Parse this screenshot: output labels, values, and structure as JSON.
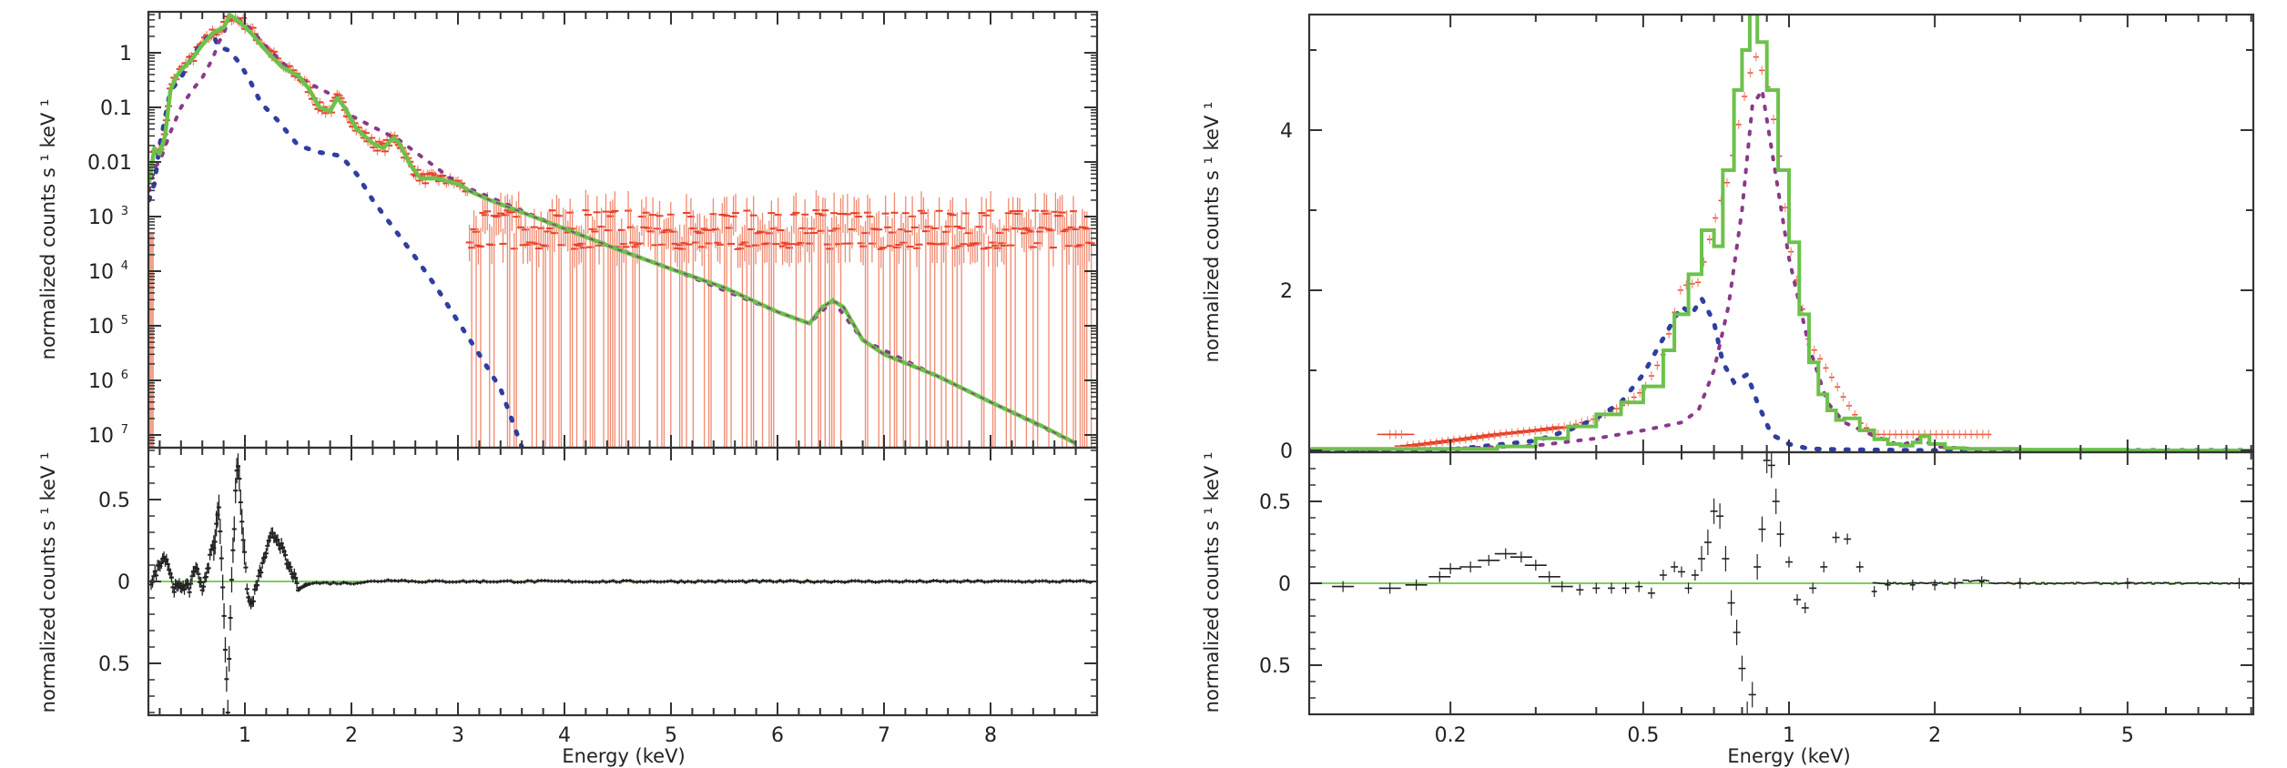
{
  "figure": {
    "panels": [
      {
        "id": "left",
        "upper": {
          "ylabel": "normalized counts s ¹ keV ¹",
          "yscale": "log",
          "ylim": [
            5.9e-08,
            5.6
          ],
          "yticks": [
            {
              "value": 1,
              "label": "1"
            },
            {
              "value": 0.1,
              "label": "0.1"
            },
            {
              "value": 0.01,
              "label": "0.01"
            },
            {
              "value": 0.001,
              "label": "10",
              "sup": "3"
            },
            {
              "value": 0.0001,
              "label": "10",
              "sup": "4"
            },
            {
              "value": 1e-05,
              "label": "10",
              "sup": "5"
            },
            {
              "value": 1e-06,
              "label": "10",
              "sup": "6"
            },
            {
              "value": 1e-07,
              "label": "10",
              "sup": "7"
            }
          ]
        },
        "lower": {
          "ylabel": "normalized counts s ¹ keV ¹",
          "ylim": [
            -0.82,
            0.8
          ],
          "yticks": [
            {
              "value": 0.5,
              "label": "0.5"
            },
            {
              "value": 0,
              "label": "0"
            },
            {
              "value": -0.5,
              "label": "0.5"
            }
          ]
        },
        "xscale": "linear",
        "xlim": [
          0.1,
          9.0
        ],
        "xticks": [
          {
            "value": 1,
            "label": "1"
          },
          {
            "value": 2,
            "label": "2"
          },
          {
            "value": 3,
            "label": "3"
          },
          {
            "value": 4,
            "label": "4"
          },
          {
            "value": 5,
            "label": "5"
          },
          {
            "value": 6,
            "label": "6"
          },
          {
            "value": 7,
            "label": "7"
          },
          {
            "value": 8,
            "label": "8"
          }
        ],
        "xlabel": "Energy (keV)"
      },
      {
        "id": "right",
        "upper": {
          "ylabel": "normalized counts s ¹ keV ¹",
          "yscale": "linear",
          "ylim": [
            0,
            5.45
          ],
          "yticks": [
            {
              "value": 0,
              "label": "0"
            },
            {
              "value": 2,
              "label": "2"
            },
            {
              "value": 4,
              "label": "4"
            }
          ]
        },
        "lower": {
          "ylabel": "normalized counts s ¹ keV ¹",
          "ylim": [
            -0.8,
            0.8
          ],
          "yticks": [
            {
              "value": 0.5,
              "label": "0.5"
            },
            {
              "value": 0,
              "label": "0"
            },
            {
              "value": -0.5,
              "label": "0.5"
            }
          ]
        },
        "xscale": "log",
        "xlim": [
          0.103,
          9.05
        ],
        "xticks": [
          {
            "value": 0.2,
            "label": "0.2"
          },
          {
            "value": 0.5,
            "label": "0.5"
          },
          {
            "value": 1,
            "label": "1"
          },
          {
            "value": 2,
            "label": "2"
          },
          {
            "value": 5,
            "label": "5"
          }
        ],
        "xlabel": "Energy (keV)"
      }
    ],
    "colors": {
      "data": "#e8402a",
      "data_err": "#f08a70",
      "model_total": "#6cc24a",
      "comp_soft": "#2f3ea0",
      "comp_hot": "#8a3a8a",
      "residual": "#222222",
      "zero_line": "#7dcf5a",
      "axes": "#333333"
    }
  },
  "chart_data": [
    {
      "type": "line",
      "title": "",
      "xlabel": "Energy (keV)",
      "ylabel": "normalized counts s^-1 keV^-1",
      "xscale": "linear",
      "yscale": "log",
      "xlim": [
        0.1,
        9.0
      ],
      "ylim": [
        5.9e-08,
        5.6
      ],
      "grid": false,
      "legend": "none",
      "series": [
        {
          "name": "model total",
          "style": "solid",
          "color": "#6cc24a",
          "x": [
            0.1,
            0.15,
            0.2,
            0.25,
            0.3,
            0.35,
            0.4,
            0.5,
            0.6,
            0.7,
            0.8,
            0.86,
            0.95,
            1.05,
            1.15,
            1.25,
            1.35,
            1.5,
            1.6,
            1.7,
            1.8,
            1.87,
            1.95,
            2.05,
            2.2,
            2.3,
            2.4,
            2.45,
            2.55,
            2.65,
            2.8,
            3.0,
            3.1,
            3.3,
            3.6,
            4.0,
            4.5,
            5.0,
            5.5,
            6.0,
            6.3,
            6.42,
            6.52,
            6.62,
            6.8,
            7.0,
            7.5,
            8.0,
            8.5,
            8.8
          ],
          "y": [
            0.004,
            0.018,
            0.014,
            0.03,
            0.2,
            0.35,
            0.48,
            0.75,
            1.4,
            2.3,
            2.9,
            4.9,
            3.7,
            2.4,
            1.4,
            0.85,
            0.55,
            0.38,
            0.22,
            0.1,
            0.085,
            0.15,
            0.09,
            0.04,
            0.022,
            0.018,
            0.028,
            0.022,
            0.009,
            0.005,
            0.005,
            0.004,
            0.003,
            0.002,
            0.0012,
            0.0006,
            0.00025,
            0.00011,
            5e-05,
            1.8e-05,
            1.1e-05,
            2.2e-05,
            2.9e-05,
            2.2e-05,
            5.5e-06,
            3e-06,
            1.2e-06,
            4e-07,
            1.4e-07,
            7e-08
          ]
        },
        {
          "name": "component 1 (cooler)",
          "style": "dotted",
          "color": "#2f3ea0",
          "x": [
            0.1,
            0.15,
            0.2,
            0.3,
            0.4,
            0.5,
            0.6,
            0.7,
            0.75,
            0.85,
            0.95,
            1.05,
            1.15,
            1.3,
            1.5,
            1.7,
            1.9,
            2.05,
            2.2,
            2.4,
            2.6,
            2.8,
            3.0,
            3.2,
            3.4,
            3.6
          ],
          "y": [
            0.002,
            0.004,
            0.02,
            0.2,
            0.35,
            0.8,
            1.6,
            2.2,
            1.3,
            1.1,
            0.65,
            0.3,
            0.12,
            0.06,
            0.02,
            0.015,
            0.013,
            0.006,
            0.002,
            0.0006,
            0.00018,
            5e-05,
            1.2e-05,
            3e-06,
            7e-07,
            6e-08
          ]
        },
        {
          "name": "component 2 (hotter)",
          "style": "dotted",
          "color": "#8a3a8a",
          "x": [
            0.1,
            0.15,
            0.2,
            0.3,
            0.4,
            0.5,
            0.6,
            0.7,
            0.75,
            0.8,
            0.86,
            1.0,
            1.2,
            1.5,
            1.87,
            2.0,
            2.45,
            3.0,
            4.0,
            5.0,
            6.0,
            6.3,
            6.52,
            6.8,
            7.5,
            8.8
          ],
          "y": [
            0.003,
            0.008,
            0.01,
            0.035,
            0.1,
            0.2,
            0.35,
            0.8,
            1.5,
            2.2,
            4.8,
            3.5,
            1.3,
            0.35,
            0.15,
            0.07,
            0.025,
            0.004,
            0.0006,
            0.00011,
            1.8e-05,
            1.1e-05,
            2.9e-05,
            5.5e-06,
            1.2e-06,
            7e-08
          ]
        },
        {
          "name": "data",
          "style": "points with error bars",
          "color": "#e8402a",
          "note": "follows model to ~3 keV; above ~3 keV scatters around 1e-3 with large downward error bars"
        }
      ]
    },
    {
      "type": "scatter",
      "title": "",
      "xlabel": "Energy (keV)",
      "ylabel": "normalized counts s^-1 keV^-1",
      "xscale": "linear",
      "xlim": [
        0.1,
        9.0
      ],
      "ylim": [
        -0.82,
        0.8
      ],
      "series": [
        {
          "name": "residuals",
          "x": [
            0.13,
            0.18,
            0.22,
            0.26,
            0.3,
            0.33,
            0.37,
            0.42,
            0.48,
            0.52,
            0.56,
            0.6,
            0.64,
            0.68,
            0.72,
            0.74,
            0.76,
            0.78,
            0.8,
            0.82,
            0.84,
            0.86,
            0.88,
            0.9,
            0.92,
            0.94,
            0.96,
            0.98,
            1.0,
            1.03,
            1.06,
            1.1,
            1.15,
            1.2,
            1.25,
            1.3,
            1.35,
            1.4,
            1.45,
            1.5,
            1.6,
            1.8,
            2.0,
            2.2,
            2.4,
            2.6,
            3.0,
            4.0,
            5.0,
            6.0,
            7.0,
            8.0,
            8.9
          ],
          "y": [
            0.0,
            0.08,
            0.14,
            0.15,
            0.05,
            -0.04,
            -0.04,
            -0.02,
            -0.05,
            0.08,
            0.06,
            -0.04,
            0.03,
            0.18,
            0.25,
            0.4,
            0.44,
            0.15,
            -0.12,
            -0.5,
            -0.78,
            -0.3,
            0.1,
            0.33,
            0.68,
            0.72,
            0.5,
            0.3,
            0.12,
            -0.1,
            -0.15,
            -0.05,
            0.07,
            0.18,
            0.28,
            0.27,
            0.2,
            0.1,
            0.05,
            -0.05,
            -0.01,
            -0.01,
            -0.01,
            0.0,
            0.01,
            0.0,
            0.0,
            0.0,
            0.0,
            0.0,
            0.0,
            0.0,
            0.0
          ]
        }
      ]
    },
    {
      "type": "line",
      "title": "",
      "xlabel": "Energy (keV)",
      "ylabel": "normalized counts s^-1 keV^-1",
      "xscale": "log",
      "yscale": "linear",
      "xlim": [
        0.103,
        9.05
      ],
      "ylim": [
        0,
        5.45
      ],
      "grid": false,
      "series": [
        {
          "name": "model total",
          "style": "step",
          "color": "#6cc24a",
          "x": [
            0.103,
            0.2,
            0.25,
            0.3,
            0.35,
            0.4,
            0.45,
            0.5,
            0.55,
            0.58,
            0.62,
            0.66,
            0.7,
            0.73,
            0.77,
            0.8,
            0.83,
            0.86,
            0.9,
            0.95,
            1.0,
            1.05,
            1.1,
            1.15,
            1.2,
            1.25,
            1.3,
            1.4,
            1.5,
            1.6,
            1.7,
            1.8,
            1.87,
            1.95,
            2.1,
            2.3,
            2.6,
            3.0,
            5.0,
            9.05
          ],
          "y": [
            0.02,
            0.02,
            0.05,
            0.15,
            0.3,
            0.45,
            0.6,
            0.8,
            1.25,
            1.7,
            2.2,
            2.75,
            2.55,
            3.5,
            4.5,
            5.0,
            5.45,
            5.1,
            4.5,
            3.5,
            2.6,
            1.7,
            1.1,
            0.7,
            0.5,
            0.38,
            0.4,
            0.25,
            0.14,
            0.08,
            0.06,
            0.1,
            0.18,
            0.08,
            0.03,
            0.02,
            0.02,
            0.01,
            0.0,
            0.0
          ]
        },
        {
          "name": "component 1 (cooler)",
          "style": "dotted",
          "color": "#2f3ea0",
          "x": [
            0.103,
            0.2,
            0.3,
            0.35,
            0.4,
            0.45,
            0.5,
            0.55,
            0.6,
            0.63,
            0.66,
            0.7,
            0.73,
            0.77,
            0.82,
            0.86,
            0.92,
            1.0,
            1.1,
            1.3,
            2.0,
            5.0,
            9.05
          ],
          "y": [
            0.0,
            0.01,
            0.12,
            0.25,
            0.4,
            0.6,
            0.95,
            1.4,
            1.8,
            1.7,
            1.9,
            1.6,
            1.1,
            0.85,
            0.95,
            0.6,
            0.2,
            0.08,
            0.02,
            0.01,
            0.0,
            0.0,
            0.0
          ]
        },
        {
          "name": "component 2 (hotter)",
          "style": "dotted",
          "color": "#8a3a8a",
          "x": [
            0.103,
            0.2,
            0.3,
            0.4,
            0.5,
            0.6,
            0.65,
            0.7,
            0.75,
            0.8,
            0.84,
            0.88,
            0.93,
            1.0,
            1.1,
            1.2,
            1.3,
            1.5,
            1.7,
            1.87,
            2.0,
            2.5,
            5.0,
            9.05
          ],
          "y": [
            0.0,
            0.02,
            0.06,
            0.15,
            0.25,
            0.35,
            0.5,
            1.0,
            1.8,
            3.0,
            4.3,
            4.5,
            3.6,
            2.4,
            1.3,
            0.6,
            0.35,
            0.18,
            0.06,
            0.15,
            0.05,
            0.01,
            0.0,
            0.0
          ]
        },
        {
          "name": "data",
          "style": "points with error bars",
          "color": "#e8402a",
          "x": [
            0.16,
            0.2,
            0.25,
            0.3,
            0.35,
            0.4,
            0.45,
            0.5,
            0.55,
            0.6,
            0.65,
            0.7,
            0.75,
            0.8,
            0.85,
            0.9,
            0.95,
            1.0,
            1.1,
            1.2,
            1.3,
            1.4,
            1.5
          ],
          "y": [
            0.05,
            0.12,
            0.2,
            0.25,
            0.3,
            0.4,
            0.55,
            0.75,
            1.2,
            2.05,
            2.1,
            2.85,
            3.4,
            4.3,
            4.95,
            4.6,
            3.8,
            2.6,
            1.35,
            1.0,
            0.65,
            0.35,
            0.2
          ]
        }
      ]
    },
    {
      "type": "scatter",
      "title": "",
      "xlabel": "Energy (keV)",
      "ylabel": "normalized counts s^-1 keV^-1",
      "xscale": "log",
      "xlim": [
        0.103,
        9.05
      ],
      "ylim": [
        -0.8,
        0.8
      ],
      "series": [
        {
          "name": "residuals",
          "x": [
            0.12,
            0.15,
            0.17,
            0.19,
            0.2,
            0.22,
            0.24,
            0.26,
            0.28,
            0.3,
            0.32,
            0.34,
            0.37,
            0.4,
            0.43,
            0.46,
            0.49,
            0.52,
            0.55,
            0.58,
            0.6,
            0.62,
            0.64,
            0.66,
            0.68,
            0.7,
            0.72,
            0.74,
            0.76,
            0.78,
            0.8,
            0.82,
            0.84,
            0.86,
            0.88,
            0.9,
            0.92,
            0.94,
            0.96,
            1.0,
            1.04,
            1.08,
            1.12,
            1.18,
            1.25,
            1.32,
            1.4,
            1.5,
            1.6,
            1.8,
            2.0,
            2.2,
            2.5,
            3.0,
            5.0,
            8.5
          ],
          "y": [
            -0.02,
            -0.03,
            -0.01,
            0.04,
            0.09,
            0.1,
            0.14,
            0.18,
            0.16,
            0.11,
            0.04,
            -0.02,
            -0.04,
            -0.03,
            -0.03,
            -0.03,
            -0.02,
            -0.06,
            0.05,
            0.1,
            0.07,
            -0.03,
            0.05,
            0.15,
            0.25,
            0.44,
            0.41,
            0.15,
            -0.12,
            -0.3,
            -0.52,
            -0.8,
            -0.68,
            0.1,
            0.33,
            0.75,
            0.72,
            0.5,
            0.3,
            0.13,
            -0.1,
            -0.15,
            -0.03,
            0.1,
            0.28,
            0.27,
            0.1,
            -0.05,
            -0.01,
            -0.01,
            -0.01,
            0.0,
            0.01,
            0.0,
            0.0,
            0.0
          ]
        }
      ]
    }
  ]
}
